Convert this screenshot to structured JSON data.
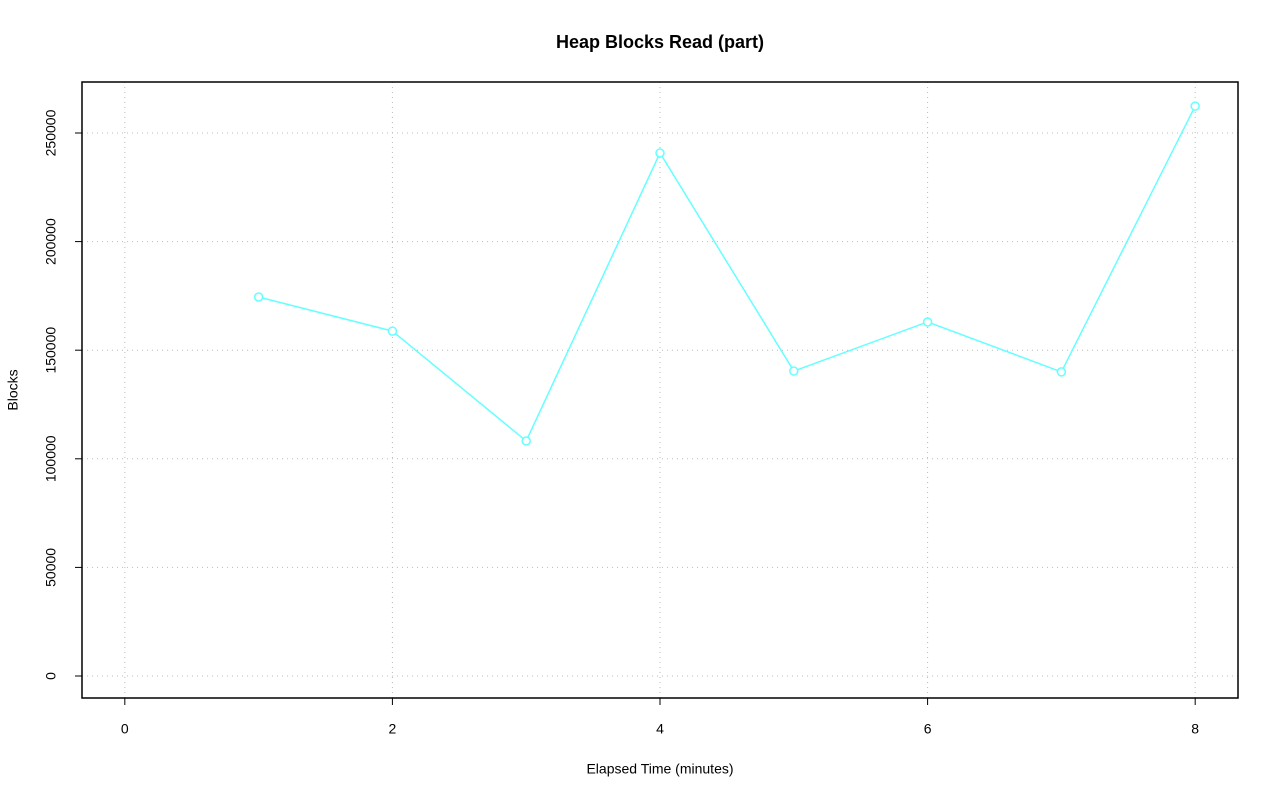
{
  "chart_data": {
    "type": "line",
    "title": "Heap Blocks Read (part)",
    "x_label": "Elapsed Time (minutes)",
    "y_label": "Blocks",
    "x": [
      1,
      2,
      3,
      4,
      5,
      6,
      7,
      8
    ],
    "values": [
      174500,
      158800,
      108200,
      240800,
      140400,
      163000,
      140000,
      262400
    ],
    "color": "#66ffff",
    "xlim": [
      -0.32,
      8.32
    ],
    "xticks": [
      0,
      2,
      4,
      6,
      8
    ],
    "ylim": [
      -10130,
      273480
    ],
    "yticks": [
      0,
      50000,
      100000,
      150000,
      200000,
      250000
    ],
    "grid": true
  }
}
